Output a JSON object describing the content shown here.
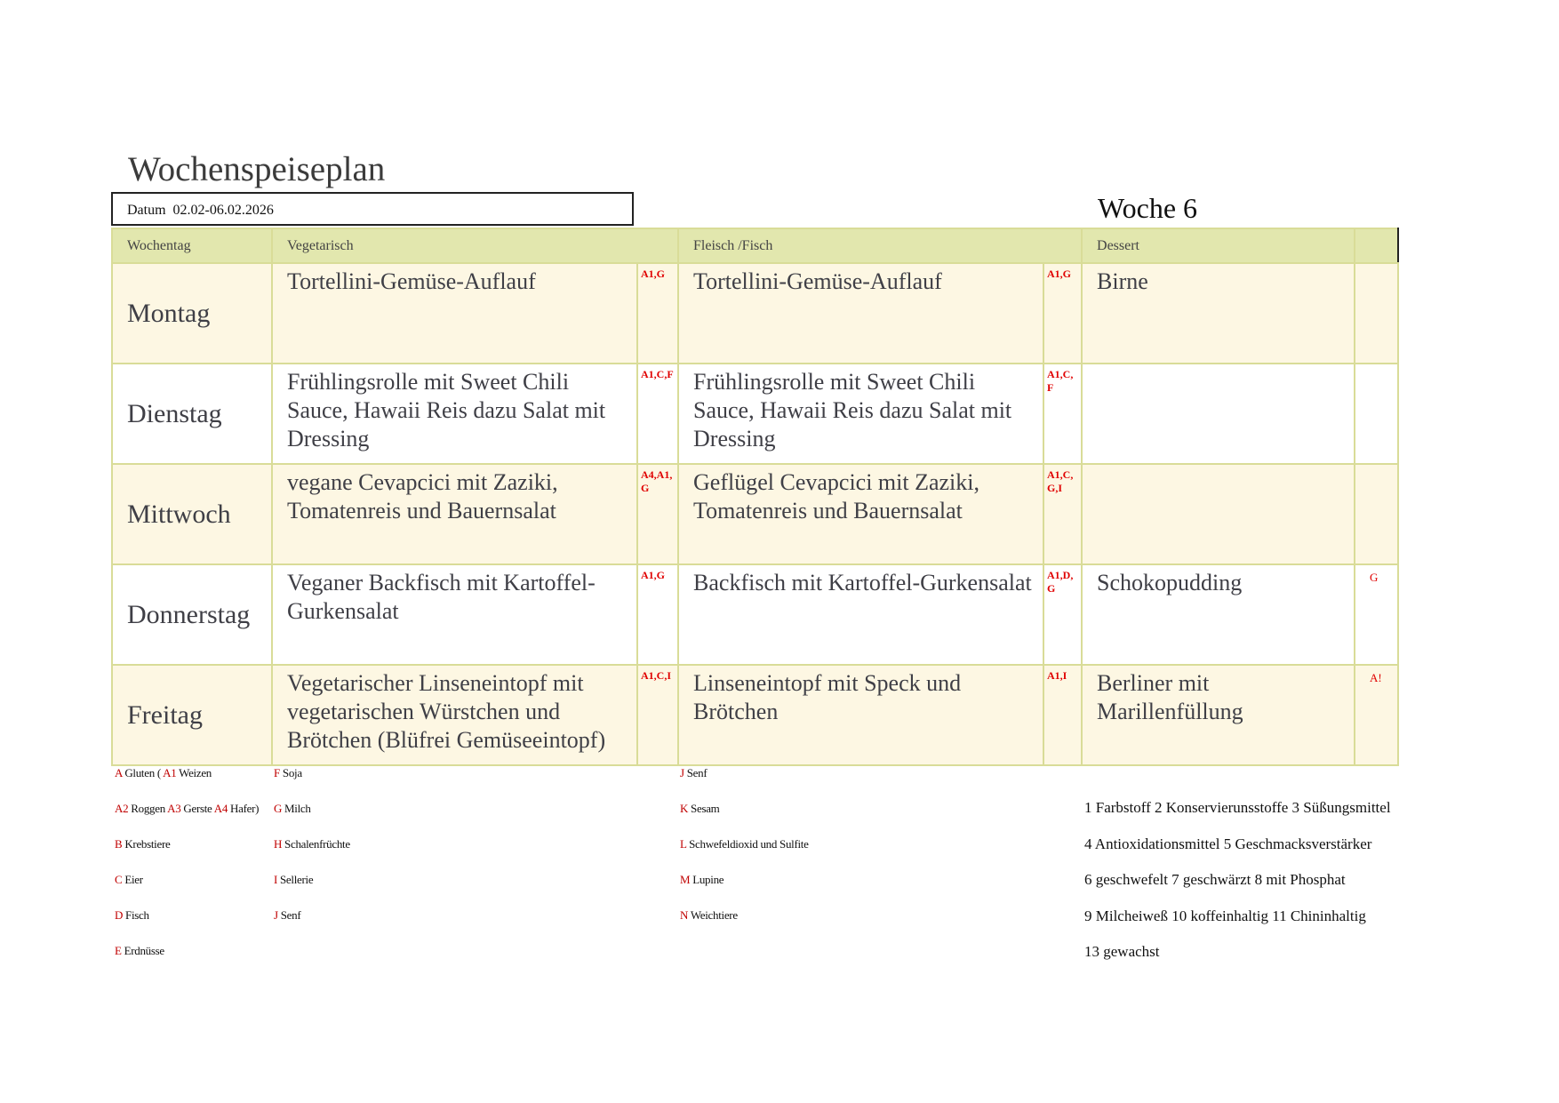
{
  "title": "Wochenspeiseplan",
  "datum": {
    "label": "Datum",
    "value": "02.02-06.02.2026"
  },
  "week": "Woche 6",
  "headers": {
    "day": "Wochentag",
    "veg": "Vegetarisch",
    "meat": "Fleisch /Fisch",
    "dessert": "Dessert"
  },
  "days": [
    {
      "day": "Montag",
      "veg": "Tortellini-Gemüse-Auflauf",
      "veg_codes": "A1,G",
      "meat": "Tortellini-Gemüse-Auflauf",
      "meat_codes": "A1,G",
      "dessert": "Birne",
      "dessert_codes": ""
    },
    {
      "day": "Dienstag",
      "veg": "Frühlingsrolle mit Sweet Chili Sauce, Hawaii Reis dazu Salat mit Dressing",
      "veg_codes": "A1,C,F",
      "meat": "Frühlingsrolle mit Sweet Chili Sauce, Hawaii Reis dazu Salat mit Dressing",
      "meat_codes": "A1,C, F",
      "dessert": "",
      "dessert_codes": ""
    },
    {
      "day": "Mittwoch",
      "veg": "vegane Cevapcici mit Zaziki, Tomatenreis und Bauernsalat",
      "veg_codes": "A4,A1, G",
      "meat": "Geflügel Cevapcici mit Zaziki, Tomatenreis und Bauernsalat",
      "meat_codes": "A1,C, G,I",
      "dessert": "",
      "dessert_codes": ""
    },
    {
      "day": "Donnerstag",
      "veg": "Veganer Backfisch mit Kartoffel-Gurkensalat",
      "veg_codes": "A1,G",
      "meat": "Backfisch mit Kartoffel-Gurkensalat",
      "meat_codes": "A1,D, G",
      "dessert": "Schokopudding",
      "dessert_codes": "G"
    },
    {
      "day": "Freitag",
      "veg": "Vegetarischer Linseneintopf mit vegetarischen Würstchen und Brötchen (Blüfrei Gemüseeintopf)",
      "veg_codes": "A1,C,I",
      "meat": "Linseneintopf mit Speck und Brötchen",
      "meat_codes": "A1,I",
      "dessert": "Berliner mit Marillenfüllung",
      "dessert_codes": "A!"
    }
  ],
  "allergens": {
    "col1": [
      {
        "code": "A",
        "name": "Gluten (",
        "code2": "A1",
        "name2": "Weizen"
      },
      {
        "code": "A2",
        "name": "Roggen",
        "code2": "A3",
        "name2": "Gerste",
        "code3": "A4",
        "name3": "Hafer)"
      },
      {
        "code": "B",
        "name": "Krebstiere"
      },
      {
        "code": "C",
        "name": "Eier"
      },
      {
        "code": "D",
        "name": "Fisch"
      },
      {
        "code": "E",
        "name": "Erdnüsse"
      }
    ],
    "col2": [
      {
        "code": "F",
        "name": "Soja"
      },
      {
        "code": "G",
        "name": "Milch"
      },
      {
        "code": "H",
        "name": "Schalenfrüchte"
      },
      {
        "code": "I",
        "name": "Sellerie"
      },
      {
        "code": "J",
        "name": "Senf"
      }
    ],
    "col3": [
      {
        "code": "J",
        "name": "Senf"
      },
      {
        "code": "K",
        "name": "Sesam"
      },
      {
        "code": "L",
        "name": "Schwefeldioxid und Sulfite"
      },
      {
        "code": "M",
        "name": "Lupine"
      },
      {
        "code": "N",
        "name": "Weichtiere"
      }
    ]
  },
  "additives": [
    "1 Farbstoff 2 Konservierunsstoffe 3 Süßungsmittel",
    "4 Antioxidationsmittel 5 Geschmacksverstärker",
    "6 geschwefelt 7 geschwärzt 8 mit Phosphat",
    "9 Milcheiweß 10 koffeinhaltig 11 Chininhaltig",
    "13 gewachst"
  ],
  "colors": {
    "header_bg": "#e2e7ae",
    "row_alt_bg": "#fdf7e3",
    "border": "#d9dc98",
    "allergen_code": "#e00000"
  }
}
